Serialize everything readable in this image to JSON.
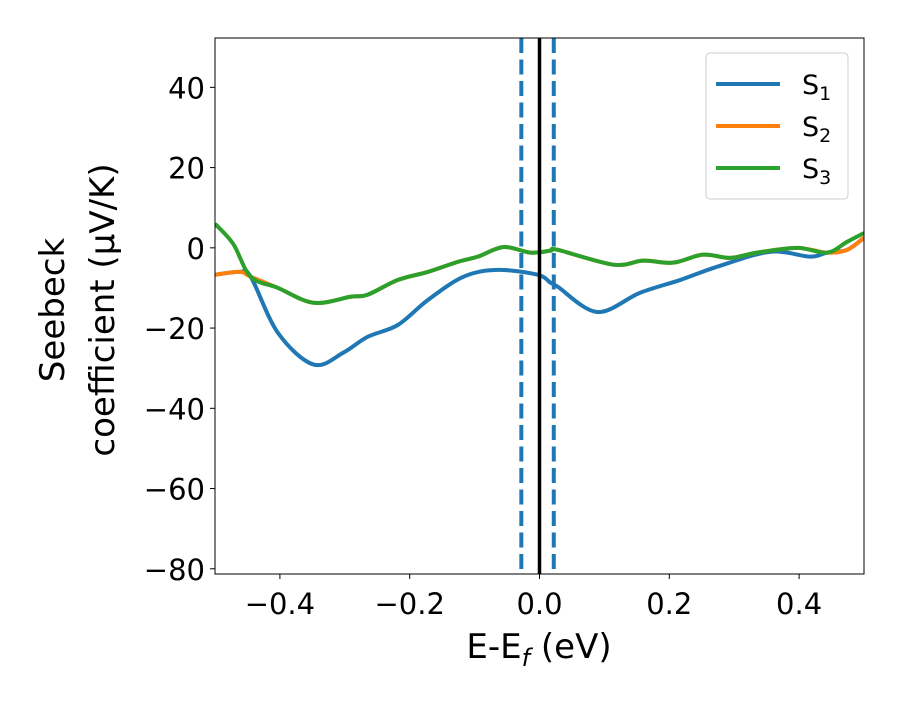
{
  "chart_data": {
    "type": "line",
    "xlabel": "E-E",
    "xlabel_sub": "f",
    "xlabel_unit": " (eV)",
    "ylabel_line1": "Seebeck",
    "ylabel_line2": "coefficient  (μV/K)",
    "xlim": [
      -0.5,
      0.5
    ],
    "ylim": [
      -81.3,
      52.3
    ],
    "xticks": [
      -0.4,
      -0.2,
      0.0,
      0.2,
      0.4
    ],
    "xtick_labels": [
      "−0.4",
      "−0.2",
      "0.0",
      "0.2",
      "0.4"
    ],
    "yticks": [
      40,
      20,
      0,
      -20,
      -40,
      -60,
      -80
    ],
    "ytick_labels": [
      "40",
      "20",
      "0",
      "−20",
      "−40",
      "−60",
      "−80"
    ],
    "grid": false,
    "legend_position": "top-right",
    "series": [
      {
        "name": "S",
        "sub": "1",
        "color": "#1f77b4",
        "x": [
          -0.5,
          -0.462,
          -0.445,
          -0.403,
          -0.348,
          -0.302,
          -0.265,
          -0.218,
          -0.172,
          -0.117,
          -0.065,
          -0.003,
          0.017,
          0.028,
          0.089,
          0.155,
          0.217,
          0.274,
          0.355,
          0.417,
          0.443,
          0.474,
          0.5
        ],
        "y": [
          -6.7,
          -6.0,
          -7.2,
          -21.2,
          -29.1,
          -26.1,
          -22.2,
          -19.2,
          -13.0,
          -7.2,
          -5.5,
          -6.7,
          -8.7,
          -9.7,
          -16.0,
          -11.2,
          -8.0,
          -4.7,
          -1.0,
          -2.2,
          -1.2,
          -0.5,
          2.5
        ]
      },
      {
        "name": "S",
        "sub": "2",
        "color": "#ff7f0e",
        "x": [
          -0.5,
          -0.462,
          -0.445,
          -0.403,
          -0.348,
          -0.291,
          -0.265,
          -0.218,
          -0.172,
          -0.126,
          -0.095,
          -0.055,
          -0.014,
          0.017,
          0.028,
          0.114,
          0.16,
          0.206,
          0.252,
          0.294,
          0.335,
          0.397,
          0.443,
          0.474,
          0.5
        ],
        "y": [
          -6.7,
          -6.0,
          -7.2,
          -10.0,
          -13.7,
          -12.2,
          -11.7,
          -8.0,
          -6.0,
          -3.5,
          -2.2,
          0.2,
          -1.2,
          -0.7,
          -0.5,
          -4.2,
          -3.2,
          -3.7,
          -1.7,
          -2.5,
          -1.2,
          0.0,
          -1.2,
          -0.5,
          2.5
        ]
      },
      {
        "name": "S",
        "sub": "3",
        "color": "#2ca02c",
        "x": [
          -0.5,
          -0.472,
          -0.445,
          -0.403,
          -0.348,
          -0.291,
          -0.265,
          -0.218,
          -0.172,
          -0.126,
          -0.095,
          -0.055,
          -0.014,
          0.017,
          0.028,
          0.114,
          0.16,
          0.206,
          0.252,
          0.294,
          0.335,
          0.397,
          0.443,
          0.474,
          0.5
        ],
        "y": [
          6.0,
          1.0,
          -7.2,
          -10.0,
          -13.7,
          -12.2,
          -11.7,
          -8.0,
          -6.0,
          -3.5,
          -2.2,
          0.2,
          -1.2,
          -0.7,
          -0.5,
          -4.2,
          -3.2,
          -3.7,
          -1.7,
          -2.5,
          -1.2,
          0.0,
          -1.2,
          1.5,
          3.7
        ]
      }
    ],
    "vlines": [
      {
        "x": -0.028,
        "style": "dashed",
        "color": "#1f77b4"
      },
      {
        "x": 0.022,
        "style": "dashed",
        "color": "#1f77b4"
      },
      {
        "x": 0.0,
        "style": "solid",
        "color": "#000000"
      }
    ]
  }
}
